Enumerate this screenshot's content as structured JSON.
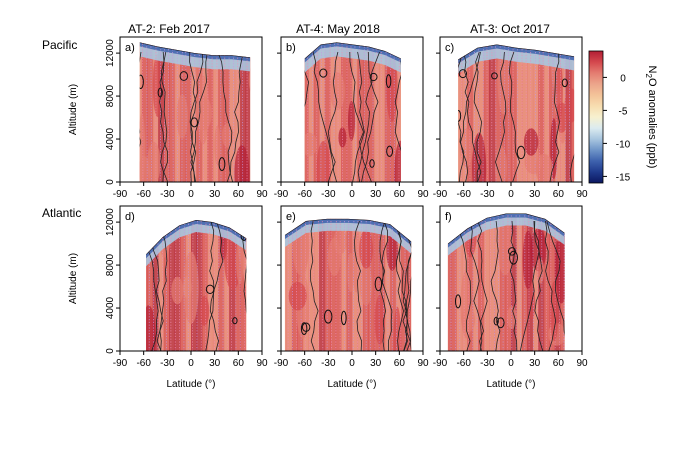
{
  "chart_data": {
    "type": "heatmap",
    "colorbar": {
      "label_prefix": "N",
      "label_sub": "2",
      "label_suffix": "O anomalies (ppb)",
      "ticks": [
        0,
        -5,
        -10,
        -15
      ],
      "range": [
        -16,
        4
      ],
      "colors": [
        "#0b1760",
        "#1f3a8c",
        "#3e62ad",
        "#6f95c8",
        "#a9c6df",
        "#dcebf0",
        "#f7f1cf",
        "#f7ddb0",
        "#f3c399",
        "#eca58b",
        "#e47c71",
        "#d4474d",
        "#b31e35"
      ]
    },
    "row_labels": [
      "Pacific",
      "Atlantic"
    ],
    "col_titles": [
      "AT-2: Feb 2017",
      "AT-4: May 2018",
      "AT-3: Oct 2017"
    ],
    "xlabel": "Latitude (°)",
    "ylabel": "Altitude (m)",
    "xticks": [
      -90,
      -60,
      -30,
      0,
      30,
      60,
      90
    ],
    "yticks": [
      0,
      4000,
      8000,
      12000
    ],
    "xlim": [
      -90,
      90
    ],
    "ylim": [
      0,
      13500
    ],
    "panels": [
      {
        "label": "a)",
        "campaign": "AT-2: Feb 2017",
        "basin": "Pacific",
        "lat_range": [
          -65,
          75
        ],
        "top_alt": [
          13000,
          12600,
          12300,
          12000,
          11800,
          11800,
          11600
        ]
      },
      {
        "label": "b)",
        "campaign": "AT-4: May 2018",
        "basin": "Pacific",
        "lat_range": [
          -60,
          62
        ],
        "top_alt": [
          11500,
          12800,
          13000,
          12800,
          12600,
          12200,
          11500
        ]
      },
      {
        "label": "c)",
        "campaign": "AT-3: Oct 2017",
        "basin": "Pacific",
        "lat_range": [
          -67,
          80
        ],
        "top_alt": [
          11400,
          12500,
          12800,
          12500,
          12300,
          12000,
          11700
        ]
      },
      {
        "label": "d)",
        "campaign": "AT-2: Feb 2017",
        "basin": "Atlantic",
        "lat_range": [
          -57,
          70
        ],
        "top_alt": [
          9000,
          10600,
          11700,
          12200,
          12000,
          11500,
          10500
        ]
      },
      {
        "label": "e)",
        "campaign": "AT-4: May 2018",
        "basin": "Atlantic",
        "lat_range": [
          -85,
          75
        ],
        "top_alt": [
          10800,
          12100,
          12300,
          12300,
          12200,
          11800,
          10200
        ]
      },
      {
        "label": "f)",
        "campaign": "AT-3: Oct 2017",
        "basin": "Atlantic",
        "lat_range": [
          -80,
          68
        ],
        "top_alt": [
          10000,
          11400,
          12400,
          12800,
          12800,
          12300,
          11000
        ]
      }
    ]
  }
}
